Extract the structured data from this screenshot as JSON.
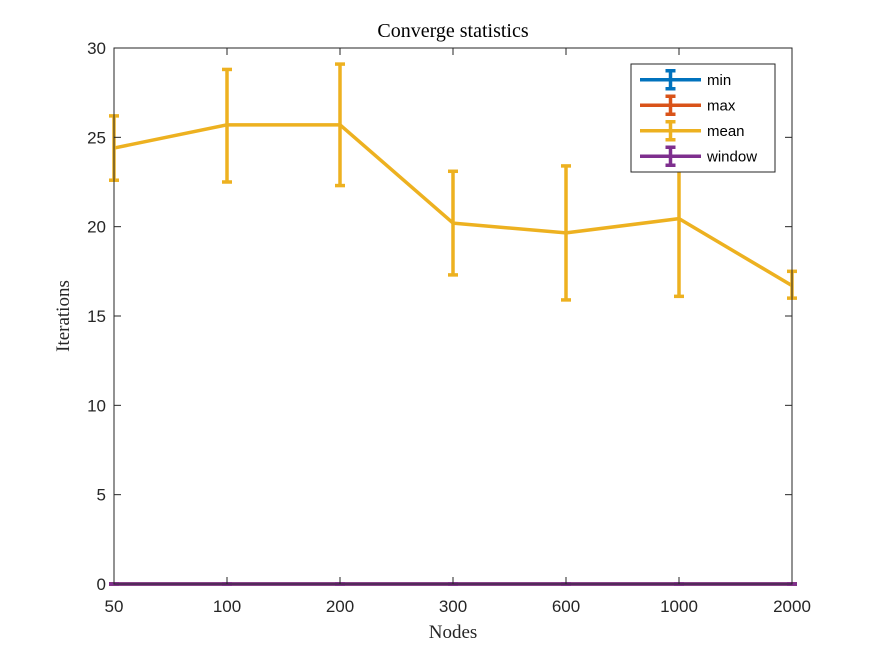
{
  "chart_data": {
    "type": "line",
    "title": "Converge statistics",
    "xlabel": "Nodes",
    "ylabel": "Iterations",
    "categories": [
      "50",
      "100",
      "200",
      "300",
      "600",
      "1000",
      "2000"
    ],
    "ylim": [
      0,
      30
    ],
    "yticks": [
      0,
      5,
      10,
      15,
      20,
      25,
      30
    ],
    "grid": false,
    "legend_position": "top-right",
    "series": [
      {
        "name": "min",
        "color": "#0072BD",
        "values": [
          0,
          0,
          0,
          0,
          0,
          0,
          0
        ],
        "lower": [
          0,
          0,
          0,
          0,
          0,
          0,
          0
        ],
        "upper": [
          0,
          0,
          0,
          0,
          0,
          0,
          0
        ]
      },
      {
        "name": "max",
        "color": "#D95319",
        "values": [
          0,
          0,
          0,
          0,
          0,
          0,
          0
        ],
        "lower": [
          0,
          0,
          0,
          0,
          0,
          0,
          0
        ],
        "upper": [
          0,
          0,
          0,
          0,
          0,
          0,
          0
        ]
      },
      {
        "name": "mean",
        "color": "#EDB120",
        "values": [
          24.4,
          25.7,
          25.7,
          20.2,
          19.65,
          20.45,
          16.7
        ],
        "lower": [
          22.6,
          22.5,
          22.3,
          17.3,
          15.9,
          16.1,
          16.0
        ],
        "upper": [
          26.2,
          28.8,
          29.1,
          23.1,
          23.4,
          24.8,
          17.5
        ]
      },
      {
        "name": "window",
        "color": "#7E2F8E",
        "values": [
          0,
          0,
          0,
          0,
          0,
          0,
          0
        ],
        "lower": [
          0,
          0,
          0,
          0,
          0,
          0,
          0
        ],
        "upper": [
          0,
          0,
          0,
          0,
          0,
          0,
          0
        ]
      }
    ]
  }
}
